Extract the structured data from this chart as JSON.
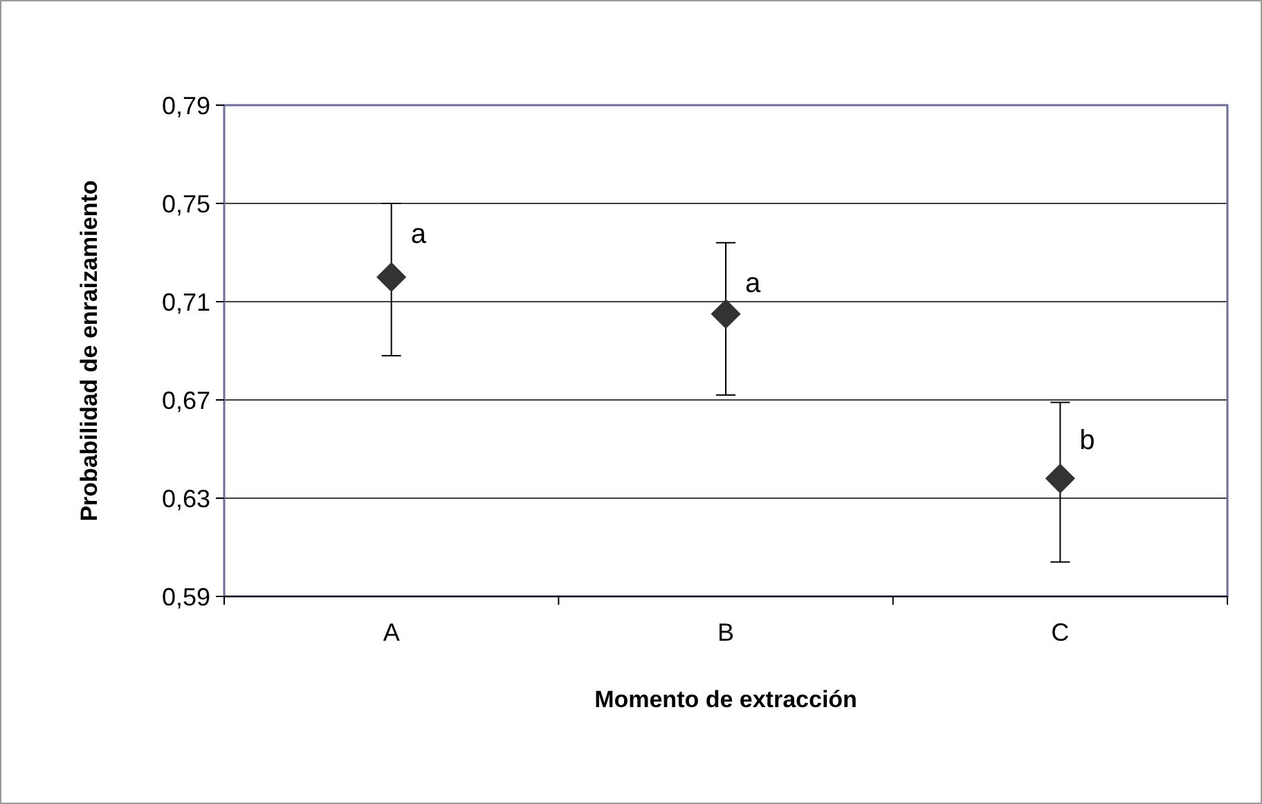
{
  "chart_data": {
    "type": "scatter",
    "xlabel": "Momento de extracción",
    "ylabel": "Probabilidad de enraizamiento",
    "categories": [
      "A",
      "B",
      "C"
    ],
    "series": [
      {
        "color": "#333333",
        "values": [
          0.72,
          0.705,
          0.638
        ],
        "errors": [
          [
            0.688,
            0.75
          ],
          [
            0.672,
            0.734
          ],
          [
            0.604,
            0.669
          ]
        ]
      }
    ],
    "ylim": [
      0.59,
      0.79
    ],
    "yticks": [
      {
        "value": 0.59,
        "label": "0,59"
      },
      {
        "value": 0.63,
        "label": "0,63"
      },
      {
        "value": 0.67,
        "label": "0,67"
      },
      {
        "value": 0.71,
        "label": "0,71"
      },
      {
        "value": 0.75,
        "label": "0,75"
      },
      {
        "value": 0.79,
        "label": "0,79"
      }
    ],
    "grid": "y",
    "marker": "diamond",
    "annotations": [
      {
        "text": "a",
        "x": "A",
        "y": 0.738
      },
      {
        "text": "a",
        "x": "B",
        "y": 0.718
      },
      {
        "text": "b",
        "x": "C",
        "y": 0.654
      }
    ]
  }
}
